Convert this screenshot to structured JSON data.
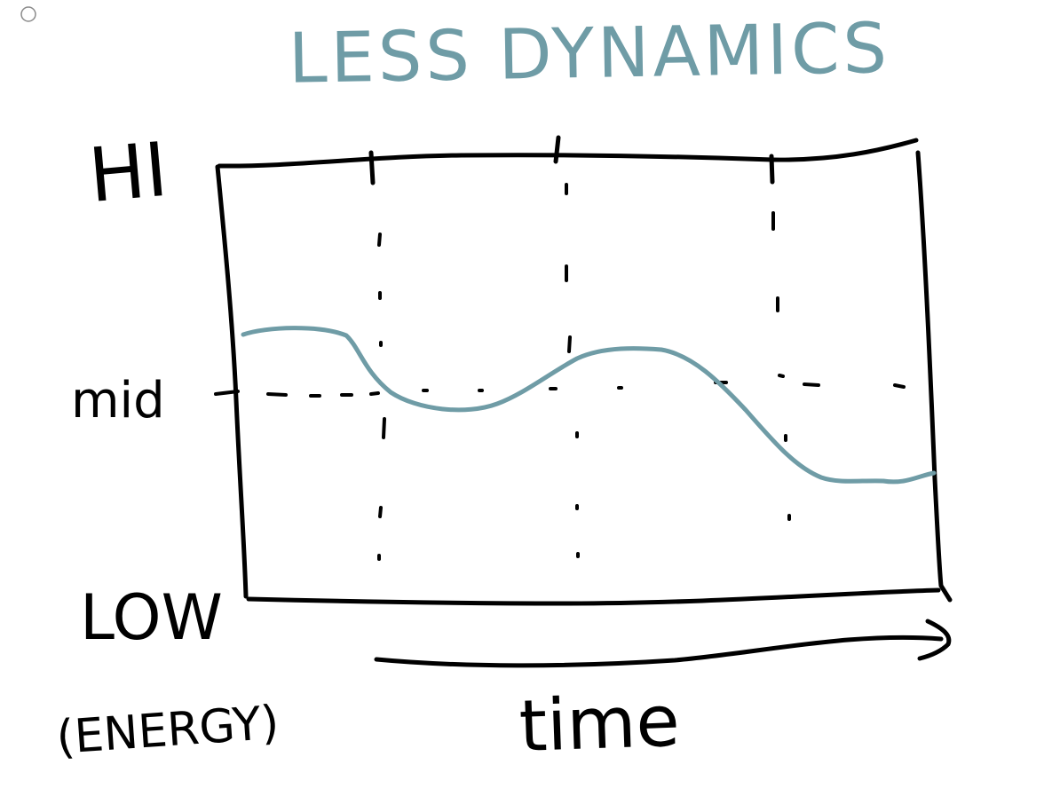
{
  "title": "LESS DYNAMICS",
  "y_axis": {
    "label": "(ENERGY)",
    "levels": {
      "high": "HI",
      "mid": "mid",
      "low": "LOW"
    }
  },
  "x_axis": {
    "label": "time"
  },
  "colors": {
    "ink": "#000000",
    "accent": "#6f9ca6",
    "background": "#ffffff"
  },
  "icons": {
    "window_control": "circle-outline-icon",
    "time_arrow": "arrow-right-icon"
  }
}
